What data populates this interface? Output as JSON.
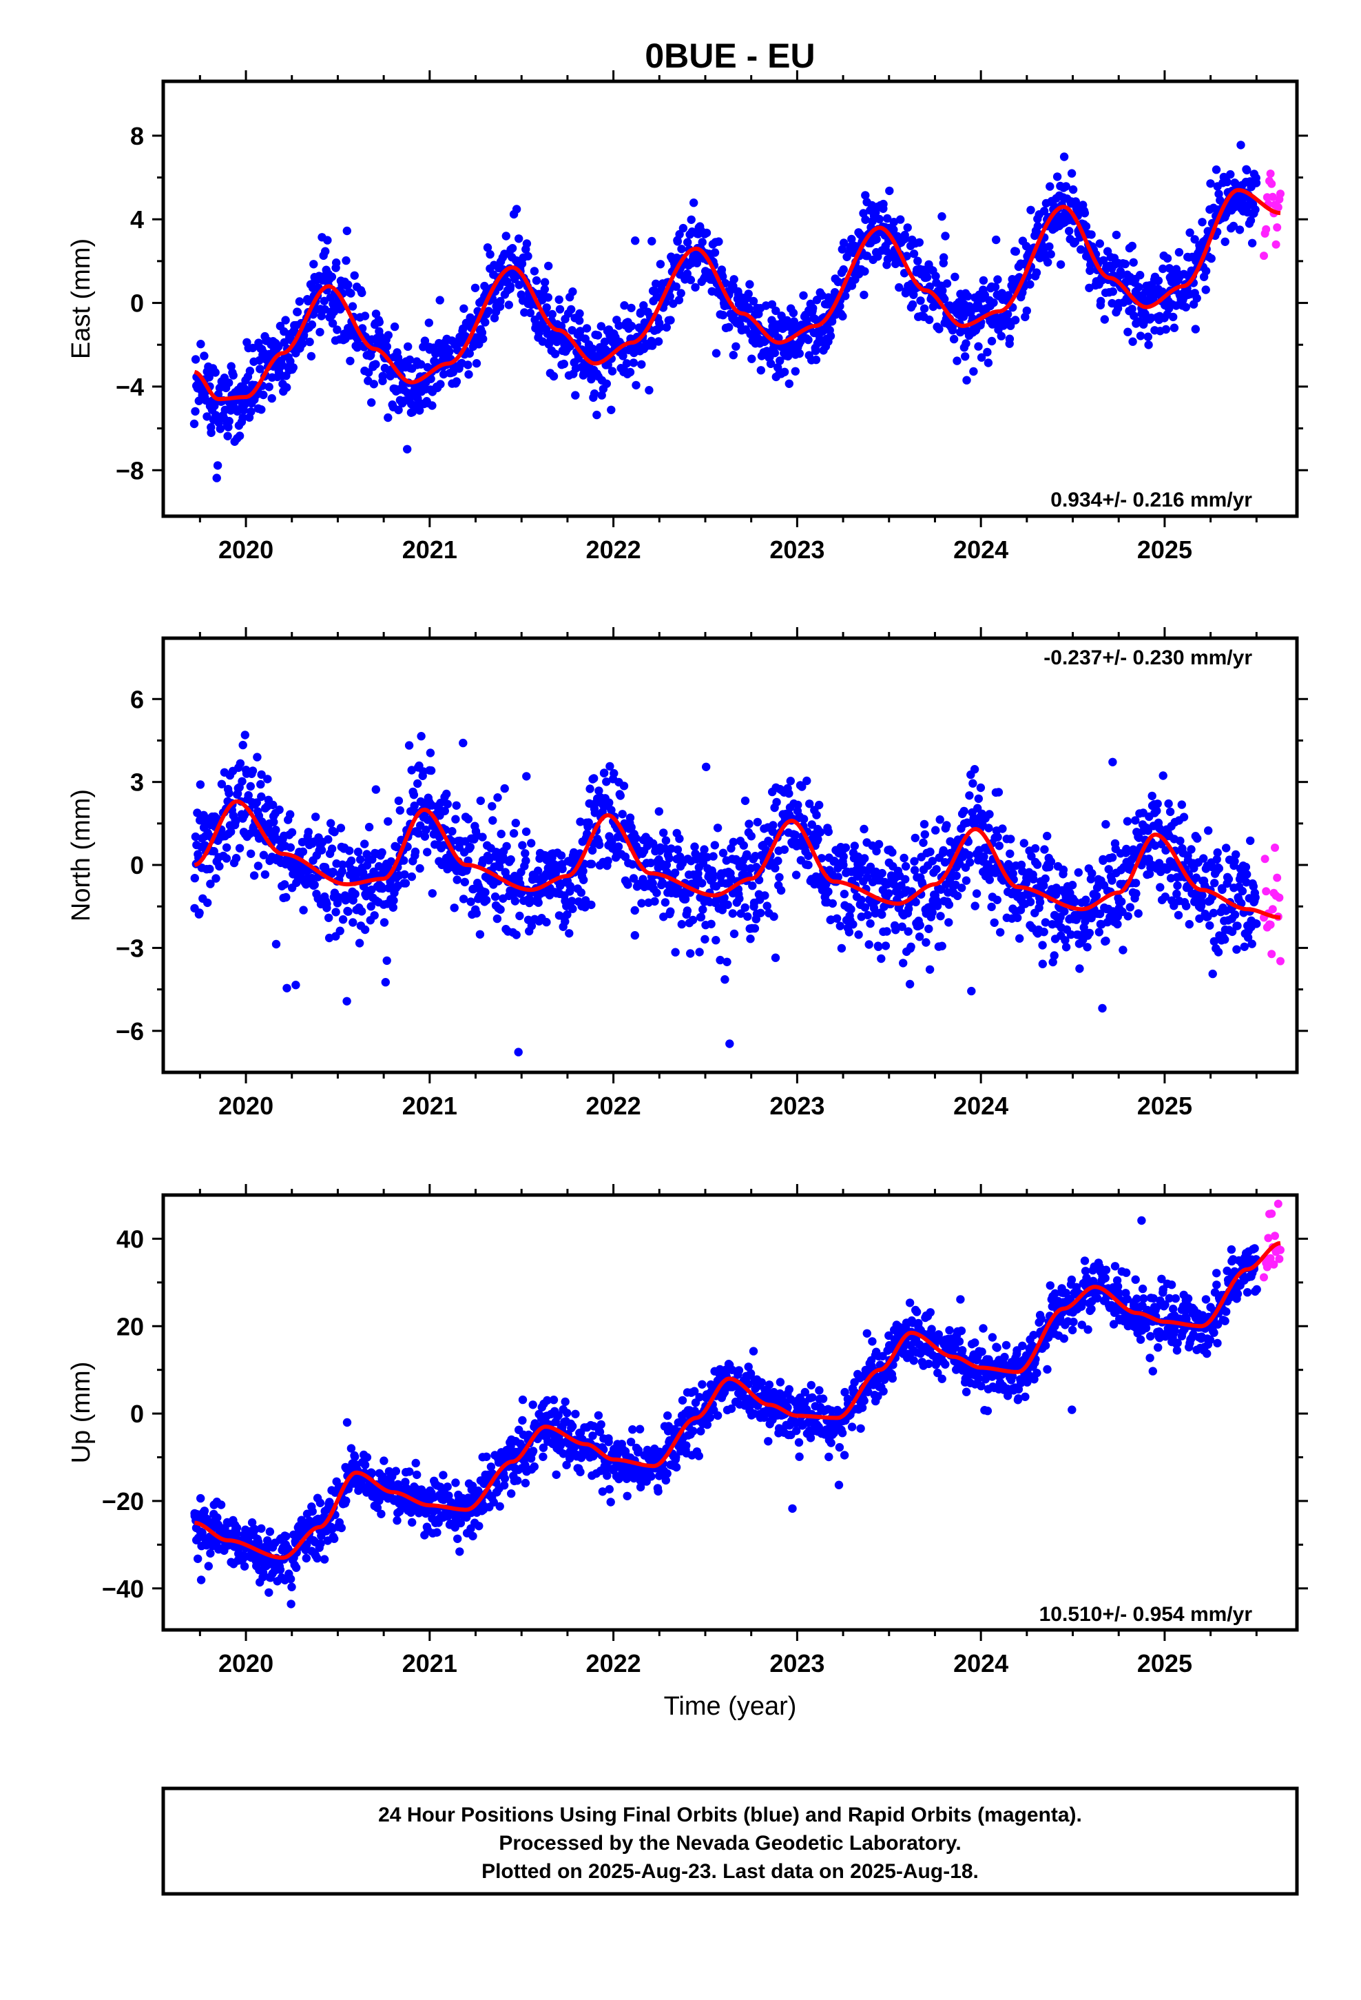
{
  "title": "0BUE - EU",
  "xlabel": "Time (year)",
  "x_ticks": [
    "2020",
    "2021",
    "2022",
    "2023",
    "2024",
    "2025"
  ],
  "colors": {
    "final": "#0000ff",
    "rapid": "#ff22ff",
    "model": "#ff0000",
    "frame": "#000000"
  },
  "footer": {
    "line1": "24 Hour Positions Using Final Orbits (blue) and Rapid Orbits (magenta).",
    "line2": "Processed by the Nevada Geodetic Laboratory.",
    "line3": "Plotted on 2025-Aug-23. Last data on 2025-Aug-18."
  },
  "chart_data": [
    {
      "type": "scatter",
      "ylabel": "East (mm)",
      "rate_label": "0.934+/- 0.216 mm/yr",
      "xlim": [
        2019.55,
        2025.72
      ],
      "ylim": [
        -10.2,
        10.6
      ],
      "y_ticks": [
        -8,
        -4,
        0,
        4,
        8
      ],
      "y_tick_labels": [
        "−8",
        "−4",
        "0",
        "4",
        "8"
      ],
      "data_start": 2019.72,
      "data_end": 2025.5,
      "rapid_start": 2025.54,
      "rapid_end": 2025.63,
      "model": {
        "x": [
          2019.72,
          2019.85,
          2020.0,
          2020.2,
          2020.45,
          2020.7,
          2020.9,
          2021.1,
          2021.45,
          2021.7,
          2021.9,
          2022.1,
          2022.45,
          2022.7,
          2022.9,
          2023.1,
          2023.45,
          2023.7,
          2023.9,
          2024.1,
          2024.45,
          2024.7,
          2024.9,
          2025.1,
          2025.4,
          2025.63
        ],
        "y": [
          -3.3,
          -4.6,
          -4.5,
          -2.4,
          0.8,
          -2.2,
          -3.8,
          -2.9,
          1.7,
          -1.3,
          -2.9,
          -1.9,
          2.6,
          -0.5,
          -1.9,
          -1.1,
          3.6,
          0.6,
          -1.1,
          -0.4,
          4.6,
          1.2,
          -0.2,
          0.8,
          5.4,
          4.3
        ]
      },
      "scatter_sigma": 0.9
    },
    {
      "type": "scatter",
      "ylabel": "North (mm)",
      "rate_label": "-0.237+/- 0.230 mm/yr",
      "xlim": [
        2019.55,
        2025.72
      ],
      "ylim": [
        -7.5,
        8.2
      ],
      "y_ticks": [
        -6,
        -3,
        0,
        3,
        6
      ],
      "y_tick_labels": [
        "−6",
        "−3",
        "0",
        "3",
        "6"
      ],
      "data_start": 2019.72,
      "data_end": 2025.5,
      "rapid_start": 2025.54,
      "rapid_end": 2025.63,
      "model": {
        "x": [
          2019.72,
          2019.95,
          2020.2,
          2020.55,
          2020.75,
          2020.97,
          2021.2,
          2021.55,
          2021.75,
          2021.97,
          2022.2,
          2022.55,
          2022.75,
          2022.97,
          2023.2,
          2023.55,
          2023.75,
          2023.97,
          2024.2,
          2024.55,
          2024.75,
          2024.95,
          2025.2,
          2025.45,
          2025.63
        ],
        "y": [
          0.0,
          2.3,
          0.4,
          -0.7,
          -0.5,
          2.0,
          0.0,
          -0.9,
          -0.4,
          1.8,
          -0.3,
          -1.1,
          -0.5,
          1.6,
          -0.6,
          -1.4,
          -0.7,
          1.3,
          -0.8,
          -1.6,
          -1.0,
          1.1,
          -0.9,
          -1.6,
          -1.9
        ]
      },
      "scatter_sigma": 1.0
    },
    {
      "type": "scatter",
      "ylabel": "Up (mm)",
      "rate_label": "10.510+/- 0.954 mm/yr",
      "xlim": [
        2019.55,
        2025.72
      ],
      "ylim": [
        -49.5,
        50
      ],
      "y_ticks": [
        -40,
        -20,
        0,
        20,
        40
      ],
      "y_tick_labels": [
        "−40",
        "−20",
        "0",
        "20",
        "40"
      ],
      "data_start": 2019.72,
      "data_end": 2025.5,
      "rapid_start": 2025.54,
      "rapid_end": 2025.63,
      "model": {
        "x": [
          2019.72,
          2019.9,
          2020.2,
          2020.4,
          2020.6,
          2020.8,
          2021.0,
          2021.2,
          2021.45,
          2021.63,
          2021.85,
          2022.0,
          2022.22,
          2022.45,
          2022.63,
          2022.85,
          2023.0,
          2023.22,
          2023.45,
          2023.62,
          2023.85,
          2024.0,
          2024.2,
          2024.45,
          2024.62,
          2024.85,
          2025.0,
          2025.2,
          2025.45,
          2025.63
        ],
        "y": [
          -25,
          -29,
          -33,
          -26,
          -13.5,
          -18,
          -21,
          -22,
          -11,
          -3,
          -7,
          -10.5,
          -12,
          -1,
          8,
          2,
          -0.5,
          -1,
          10,
          18.5,
          13,
          10.5,
          9.5,
          24,
          29,
          23,
          21,
          20,
          33,
          39
        ]
      },
      "scatter_sigma": 3.2
    }
  ]
}
